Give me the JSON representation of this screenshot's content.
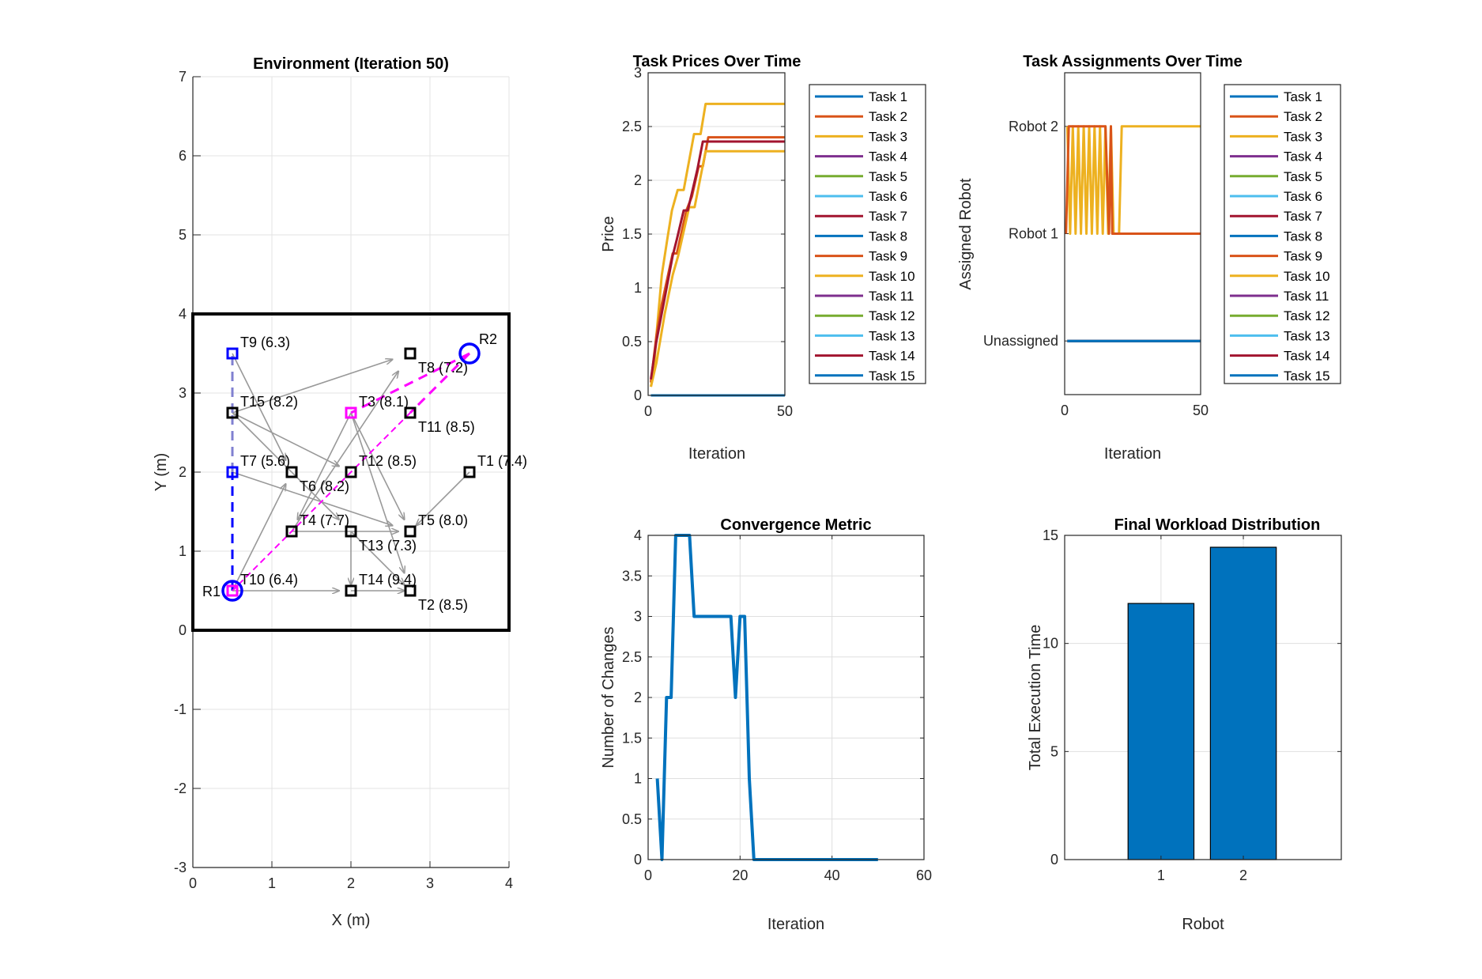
{
  "colors": {
    "matlab_order": [
      "#0072BD",
      "#D95319",
      "#EDB120",
      "#7E2F8E",
      "#77AC30",
      "#4DBEEE",
      "#A2142F"
    ],
    "robot": "#0000FF",
    "robot1_path": "#0000FF",
    "robot1_path_light": "#8080D0",
    "robot2_path": "#FF00FF",
    "arrow": "#999999",
    "bar": "#0072BD"
  },
  "chart_data": [
    {
      "id": "environment",
      "type": "scatter",
      "title": "Environment (Iteration 50)",
      "xlabel": "X (m)",
      "ylabel": "Y (m)",
      "xlim": [
        0,
        4
      ],
      "ylim": [
        -3,
        7
      ],
      "xticks": [
        "0",
        "1",
        "2",
        "3",
        "4"
      ],
      "yticks": [
        "-3",
        "-2",
        "-1",
        "0",
        "1",
        "2",
        "3",
        "4",
        "5",
        "6",
        "7"
      ],
      "grid": true,
      "boundary": [
        0,
        0,
        4,
        4
      ],
      "tasks": [
        {
          "name": "T1",
          "x": 3.5,
          "y": 2.0,
          "label": "T1 (7.4)",
          "color": "black"
        },
        {
          "name": "T2",
          "x": 2.75,
          "y": 0.5,
          "label": "T2 (8.5)",
          "color": "black"
        },
        {
          "name": "T3",
          "x": 2.0,
          "y": 2.75,
          "label": "T3 (8.1)",
          "color": "magenta"
        },
        {
          "name": "T4",
          "x": 1.25,
          "y": 1.25,
          "label": "T4 (7.7)",
          "color": "black"
        },
        {
          "name": "T5",
          "x": 2.75,
          "y": 1.25,
          "label": "T5 (8.0)",
          "color": "black"
        },
        {
          "name": "T6",
          "x": 1.25,
          "y": 2.0,
          "label": "T6 (8.2)",
          "color": "black"
        },
        {
          "name": "T7",
          "x": 0.5,
          "y": 2.0,
          "label": "T7 (5.6)",
          "color": "blue"
        },
        {
          "name": "T8",
          "x": 2.75,
          "y": 3.5,
          "label": "T8 (7.2)",
          "color": "black"
        },
        {
          "name": "T9",
          "x": 0.5,
          "y": 3.5,
          "label": "T9 (6.3)",
          "color": "blue"
        },
        {
          "name": "T10",
          "x": 0.5,
          "y": 0.5,
          "label": "T10 (6.4)",
          "color": "magenta"
        },
        {
          "name": "T11",
          "x": 2.75,
          "y": 2.75,
          "label": "T11 (8.5)",
          "color": "black"
        },
        {
          "name": "T12",
          "x": 2.0,
          "y": 2.0,
          "label": "T12 (8.5)",
          "color": "black"
        },
        {
          "name": "T13",
          "x": 2.0,
          "y": 1.25,
          "label": "T13 (7.3)",
          "color": "black"
        },
        {
          "name": "T14",
          "x": 2.0,
          "y": 0.5,
          "label": "T14 (9.4)",
          "color": "black"
        },
        {
          "name": "T15",
          "x": 0.5,
          "y": 2.75,
          "label": "T15 (8.2)",
          "color": "black"
        }
      ],
      "robots": [
        {
          "name": "R1",
          "x": 0.5,
          "y": 0.5,
          "label": "R1"
        },
        {
          "name": "R2",
          "x": 3.5,
          "y": 3.5,
          "label": "R2"
        }
      ],
      "paths": [
        {
          "robot": "R1",
          "segments": [
            [
              "R1",
              "T7",
              "robot1_path"
            ],
            [
              "T7",
              "T15",
              "robot1_path_light"
            ],
            [
              "T15",
              "T9",
              "robot1_path_light"
            ]
          ]
        },
        {
          "robot": "R2",
          "segments": [
            [
              "R2",
              "T3",
              "robot2_path"
            ],
            [
              "R2",
              "T11",
              "robot2_path"
            ],
            [
              "T11",
              "T10",
              "robot2_path"
            ]
          ]
        }
      ],
      "arrows": [
        [
          "T9",
          "T6"
        ],
        [
          "T15",
          "T8"
        ],
        [
          "T15",
          "T12"
        ],
        [
          "T15",
          "T13"
        ],
        [
          "T7",
          "T5"
        ],
        [
          "T10",
          "T6"
        ],
        [
          "T10",
          "T14"
        ],
        [
          "T14",
          "T2"
        ],
        [
          "T4",
          "T8"
        ],
        [
          "T4",
          "T5"
        ],
        [
          "T3",
          "T5"
        ],
        [
          "T3",
          "T2"
        ],
        [
          "T13",
          "T14"
        ],
        [
          "T13",
          "T2"
        ],
        [
          "T1",
          "T5"
        ],
        [
          "T3",
          "T4"
        ]
      ]
    },
    {
      "id": "prices",
      "type": "line",
      "title": "Task Prices Over Time",
      "xlabel": "Iteration",
      "ylabel": "Price",
      "xlim": [
        0,
        50
      ],
      "ylim": [
        0,
        3
      ],
      "xticks": [
        "0",
        "50"
      ],
      "yticks": [
        "0",
        "0.5",
        "1",
        "1.5",
        "2",
        "2.5",
        "3"
      ],
      "grid": "y",
      "legend_position": "outside-right",
      "series": [
        {
          "name": "Task 1",
          "points": [
            [
              1,
              0
            ],
            [
              50,
              0
            ]
          ]
        },
        {
          "name": "Task 2",
          "points": [
            [
              1,
              0
            ],
            [
              50,
              0
            ]
          ]
        },
        {
          "name": "Task 3",
          "points": [
            [
              1,
              0.08
            ],
            [
              2,
              0.2
            ],
            [
              3,
              0.55
            ],
            [
              5,
              1.12
            ],
            [
              7,
              1.45
            ],
            [
              8.7,
              1.72
            ],
            [
              10.8,
              1.91
            ],
            [
              13,
              1.91
            ],
            [
              16.8,
              2.43
            ],
            [
              19.2,
              2.43
            ],
            [
              21,
              2.71
            ],
            [
              50,
              2.71
            ]
          ]
        },
        {
          "name": "Task 4",
          "points": [
            [
              1,
              0
            ],
            [
              50,
              0
            ]
          ]
        },
        {
          "name": "Task 5",
          "points": [
            [
              1,
              0
            ],
            [
              50,
              0
            ]
          ]
        },
        {
          "name": "Task 6",
          "points": [
            [
              1,
              0
            ],
            [
              50,
              0
            ]
          ]
        },
        {
          "name": "Task 7",
          "points": [
            [
              1,
              0
            ],
            [
              50,
              0
            ]
          ]
        },
        {
          "name": "Task 8",
          "points": [
            [
              1,
              0
            ],
            [
              50,
              0
            ]
          ]
        },
        {
          "name": "Task 9",
          "points": [
            [
              1,
              0.12
            ],
            [
              3,
              0.55
            ],
            [
              5,
              0.85
            ],
            [
              9,
              1.32
            ],
            [
              10.5,
              1.32
            ],
            [
              14,
              1.72
            ],
            [
              16,
              1.85
            ],
            [
              18.5,
              2.13
            ],
            [
              20,
              2.13
            ],
            [
              22,
              2.4
            ],
            [
              50,
              2.4
            ]
          ]
        },
        {
          "name": "Task 10",
          "points": [
            [
              1,
              0.08
            ],
            [
              3,
              0.3
            ],
            [
              6,
              0.75
            ],
            [
              9,
              1.12
            ],
            [
              11,
              1.3
            ],
            [
              15,
              1.75
            ],
            [
              17,
              1.75
            ],
            [
              21,
              2.27
            ],
            [
              50,
              2.27
            ]
          ]
        },
        {
          "name": "Task 11",
          "points": [
            [
              1,
              0
            ],
            [
              50,
              0
            ]
          ]
        },
        {
          "name": "Task 12",
          "points": [
            [
              1,
              0
            ],
            [
              50,
              0
            ]
          ]
        },
        {
          "name": "Task 13",
          "points": [
            [
              1,
              0
            ],
            [
              50,
              0
            ]
          ]
        },
        {
          "name": "Task 14",
          "points": [
            [
              1,
              0.15
            ],
            [
              3,
              0.5
            ],
            [
              6,
              0.9
            ],
            [
              9,
              1.3
            ],
            [
              10.5,
              1.45
            ],
            [
              13,
              1.72
            ],
            [
              14.5,
              1.72
            ],
            [
              18,
              2.1
            ],
            [
              20,
              2.36
            ],
            [
              50,
              2.36
            ]
          ]
        },
        {
          "name": "Task 15",
          "points": [
            [
              1,
              0
            ],
            [
              50,
              0
            ]
          ]
        }
      ]
    },
    {
      "id": "assignments",
      "type": "line",
      "title": "Task Assignments Over Time",
      "xlabel": "Iteration",
      "ylabel": "Assigned Robot",
      "xlim": [
        0,
        50
      ],
      "ylim": [
        -0.5,
        2.5
      ],
      "xticks": [
        "0",
        "50"
      ],
      "yticks": [
        {
          "value": 0,
          "label": "Unassigned"
        },
        {
          "value": 1,
          "label": "Robot 1"
        },
        {
          "value": 2,
          "label": "Robot 2"
        }
      ],
      "grid": false,
      "legend_position": "outside-right",
      "series": [
        {
          "name": "Task 1",
          "points": [
            [
              1,
              0
            ],
            [
              50,
              0
            ]
          ]
        },
        {
          "name": "Task 2",
          "points": [
            [
              1,
              0
            ],
            [
              50,
              0
            ]
          ]
        },
        {
          "name": "Task 3",
          "points": [
            [
              1,
              2
            ],
            [
              2,
              1
            ],
            [
              3,
              2
            ],
            [
              4,
              1
            ],
            [
              5,
              2
            ],
            [
              6,
              1
            ],
            [
              7,
              2
            ],
            [
              8,
              1
            ],
            [
              9,
              2
            ],
            [
              10,
              1
            ],
            [
              11,
              2
            ],
            [
              12,
              1
            ],
            [
              13,
              2
            ],
            [
              14,
              1
            ],
            [
              15,
              2
            ],
            [
              16,
              1
            ],
            [
              17,
              2
            ],
            [
              18,
              1
            ],
            [
              19,
              1
            ],
            [
              20,
              1
            ],
            [
              21,
              2
            ],
            [
              50,
              2
            ]
          ]
        },
        {
          "name": "Task 4",
          "points": [
            [
              1,
              0
            ],
            [
              50,
              0
            ]
          ]
        },
        {
          "name": "Task 5",
          "points": [
            [
              1,
              0
            ],
            [
              50,
              0
            ]
          ]
        },
        {
          "name": "Task 6",
          "points": [
            [
              1,
              0
            ],
            [
              50,
              0
            ]
          ]
        },
        {
          "name": "Task 7",
          "points": [
            [
              1,
              0
            ],
            [
              50,
              0
            ]
          ]
        },
        {
          "name": "Task 8",
          "points": [
            [
              1,
              0
            ],
            [
              50,
              0
            ]
          ]
        },
        {
          "name": "Task 9",
          "points": [
            [
              0.5,
              1
            ],
            [
              1.5,
              2
            ],
            [
              15,
              2
            ],
            [
              16.3,
              1
            ],
            [
              17,
              2
            ],
            [
              17.5,
              1
            ],
            [
              50,
              1
            ]
          ]
        },
        {
          "name": "Task 10",
          "points": [
            [
              1,
              0
            ],
            [
              50,
              0
            ]
          ]
        },
        {
          "name": "Task 11",
          "points": [
            [
              1,
              0
            ],
            [
              50,
              0
            ]
          ]
        },
        {
          "name": "Task 12",
          "points": [
            [
              1,
              0
            ],
            [
              50,
              0
            ]
          ]
        },
        {
          "name": "Task 13",
          "points": [
            [
              1,
              0
            ],
            [
              50,
              0
            ]
          ]
        },
        {
          "name": "Task 14",
          "points": [
            [
              1,
              0
            ],
            [
              50,
              0
            ]
          ]
        },
        {
          "name": "Task 15",
          "points": [
            [
              1,
              0
            ],
            [
              50,
              0
            ]
          ]
        }
      ]
    },
    {
      "id": "convergence",
      "type": "line",
      "title": "Convergence Metric",
      "xlabel": "Iteration",
      "ylabel": "Number of Changes",
      "xlim": [
        0,
        60
      ],
      "ylim": [
        0,
        4
      ],
      "xticks": [
        "0",
        "20",
        "40",
        "60"
      ],
      "yticks": [
        "0",
        "0.5",
        "1",
        "1.5",
        "2",
        "2.5",
        "3",
        "3.5",
        "4"
      ],
      "grid": true,
      "x": [
        2,
        3,
        4,
        5,
        6,
        7,
        8,
        9,
        10,
        11,
        12,
        13,
        14,
        15,
        16,
        17,
        18,
        19,
        20,
        21,
        22,
        23,
        24,
        25,
        26,
        27,
        28,
        29,
        30,
        31,
        32,
        33,
        34,
        35,
        36,
        37,
        38,
        39,
        40,
        41,
        42,
        43,
        44,
        45,
        46,
        47,
        48,
        49,
        50
      ],
      "values": [
        1,
        0,
        2,
        2,
        4,
        4,
        4,
        4,
        3,
        3,
        3,
        3,
        3,
        3,
        3,
        3,
        3,
        2,
        3,
        3,
        1,
        0,
        0,
        0,
        0,
        0,
        0,
        0,
        0,
        0,
        0,
        0,
        0,
        0,
        0,
        0,
        0,
        0,
        0,
        0,
        0,
        0,
        0,
        0,
        0,
        0,
        0,
        0,
        0
      ]
    },
    {
      "id": "workload",
      "type": "bar",
      "title": "Final Workload Distribution",
      "xlabel": "Robot",
      "ylabel": "Total Execution Time",
      "categories": [
        "1",
        "2"
      ],
      "values": [
        11.85,
        14.45
      ],
      "ylim": [
        0,
        15
      ],
      "yticks": [
        "0",
        "5",
        "10",
        "15"
      ],
      "grid": true
    }
  ]
}
